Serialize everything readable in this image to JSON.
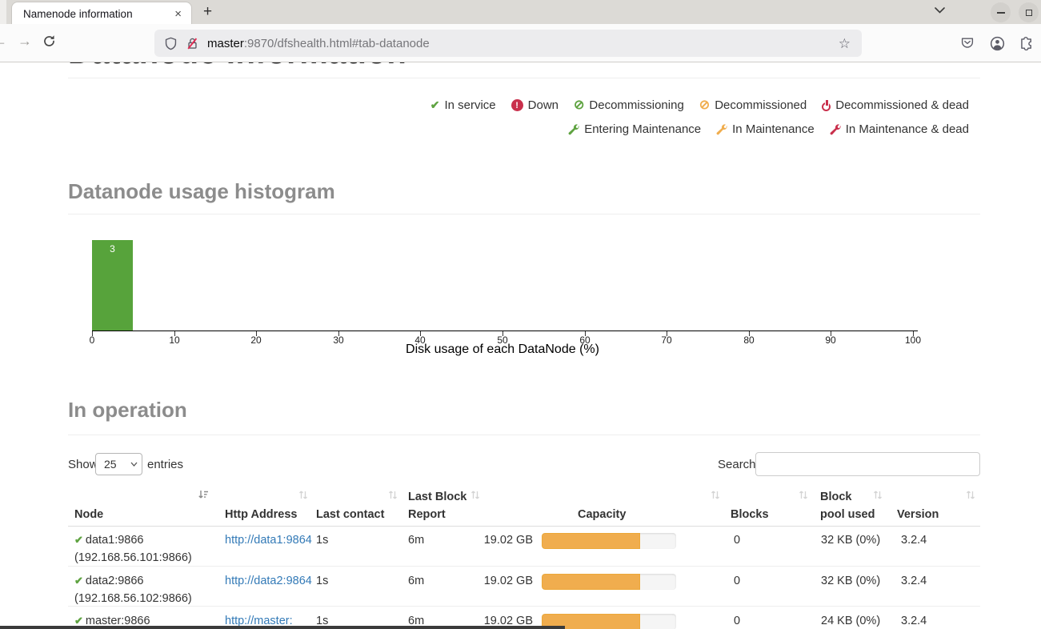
{
  "theme": {
    "green": "#5fa341",
    "orange": "#f0ad4e",
    "red": "#c9304c",
    "bar_green": "#57a33b",
    "link_blue": "#337ab7",
    "progress_fill": "#f0ad4e"
  },
  "browser": {
    "tab_title": "Namenode information",
    "close_icon": "×",
    "new_tab_icon": "+",
    "url_host": "master",
    "url_rest": ":9870/dfshealth.html#tab-datanode",
    "star_icon": "☆"
  },
  "page": {
    "title": "Datanode Information",
    "legend_row1": [
      {
        "icon": "check",
        "color": "green",
        "label": "In service"
      },
      {
        "icon": "exclamation-circle",
        "color": "red",
        "label": "Down"
      },
      {
        "icon": "ban-circle",
        "color": "green",
        "label": "Decommissioning"
      },
      {
        "icon": "ban-circle",
        "color": "orange",
        "label": "Decommissioned"
      },
      {
        "icon": "power",
        "color": "red",
        "label": "Decommissioned & dead"
      }
    ],
    "legend_row2": [
      {
        "icon": "wrench",
        "color": "green",
        "label": "Entering Maintenance"
      },
      {
        "icon": "wrench",
        "color": "orange",
        "label": "In Maintenance"
      },
      {
        "icon": "wrench",
        "color": "red",
        "label": "In Maintenance & dead"
      }
    ],
    "histogram_heading": "Datanode usage histogram",
    "operation_heading": "In operation",
    "show_label": "Show",
    "page_size": "25",
    "entries_label": "entries",
    "search_label": "Search:",
    "search_value": "",
    "columns": [
      {
        "label": "Node",
        "sort": "asc"
      },
      {
        "label": "Http Address",
        "sort": "unsorted"
      },
      {
        "label": "Last contact",
        "sort": "unsorted"
      },
      {
        "label": "Last Block\nReport",
        "sort": "unsorted"
      },
      {
        "label": "Capacity",
        "sort": "unsorted"
      },
      {
        "label": "Blocks",
        "sort": "unsorted"
      },
      {
        "label": "Block\npool used",
        "sort": "unsorted"
      },
      {
        "label": "Version",
        "sort": "unsorted"
      }
    ],
    "rows": [
      {
        "status": "in-service",
        "node": "data1:9866",
        "address": "(192.168.56.101:9866)",
        "http": "http://data1:9864",
        "last_contact": "1s",
        "last_block_report": "6m",
        "capacity_text": "19.02 GB",
        "capacity_pct": 73,
        "blocks": "0",
        "block_pool": "32 KB (0%)",
        "version": "3.2.4"
      },
      {
        "status": "in-service",
        "node": "data2:9866",
        "address": "(192.168.56.102:9866)",
        "http": "http://data2:9864",
        "last_contact": "1s",
        "last_block_report": "6m",
        "capacity_text": "19.02 GB",
        "capacity_pct": 73,
        "blocks": "0",
        "block_pool": "32 KB (0%)",
        "version": "3.2.4"
      },
      {
        "status": "in-service",
        "node": "master:9866",
        "address": "",
        "http": "http://master:",
        "last_contact": "1s",
        "last_block_report": "6m",
        "capacity_text": "19.02 GB",
        "capacity_pct": 73,
        "blocks": "0",
        "block_pool": "24 KB (0%)",
        "version": "3.2.4"
      }
    ]
  },
  "chart_data": {
    "type": "bar",
    "title": "Datanode usage histogram",
    "xlabel": "Disk usage of each DataNode (%)",
    "ylabel": "",
    "xlim": [
      0,
      100
    ],
    "x_ticks": [
      0,
      10,
      20,
      30,
      40,
      50,
      60,
      70,
      80,
      90,
      100
    ],
    "bars": [
      {
        "x_start": 0,
        "x_end": 5,
        "count": 3
      }
    ],
    "bar_color": "#57a33b",
    "grid": false
  }
}
